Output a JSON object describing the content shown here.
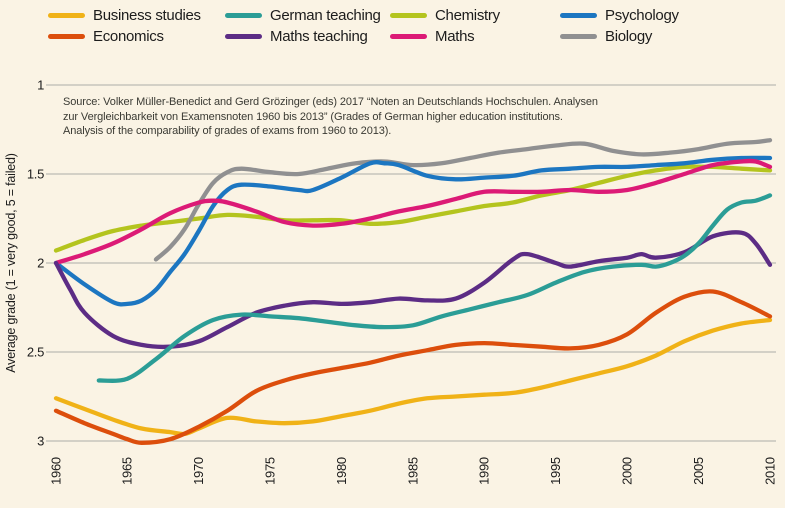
{
  "colors": {
    "background": "#faf3e4",
    "gridline": "#bcbcb3",
    "text": "#1c1c1c"
  },
  "legend": {
    "items": [
      {
        "label": "Business studies"
      },
      {
        "label": "German teaching"
      },
      {
        "label": "Chemistry"
      },
      {
        "label": "Psychology"
      },
      {
        "label": "Economics"
      },
      {
        "label": "Maths teaching"
      },
      {
        "label": "Maths"
      },
      {
        "label": "Biology"
      }
    ]
  },
  "source": {
    "lines": [
      "Source: Volker Müller-Benedict and Gerd Grözinger (eds) 2017 “Noten an Deutschlands Hochschulen. Analysen",
      "zur Vergleichbarkeit von Examensnoten 1960 bis 2013” (Grades of German higher education institutions.",
      "Analysis of the comparability of grades of exams from 1960 to 2013)."
    ]
  },
  "chart_data": {
    "type": "line",
    "title": "",
    "xlabel": "",
    "ylabel": "Average grade (1 = very good, 5 = failed)",
    "xlim": [
      1960,
      2010
    ],
    "ylim": [
      1,
      3
    ],
    "y_axis_inverted": true,
    "grid": "horizontal-only",
    "legend_position": "top",
    "x_ticks": [
      1960,
      1965,
      1970,
      1975,
      1980,
      1985,
      1990,
      1995,
      2000,
      2005,
      2010
    ],
    "y_ticks": [
      1,
      1.5,
      2,
      2.5,
      3
    ],
    "draw_order": [
      "Chemistry",
      "Business studies",
      "Economics",
      "Biology",
      "Psychology",
      "Maths",
      "Maths teaching",
      "German teaching"
    ],
    "series": [
      {
        "name": "Business studies",
        "color": "#f0b217",
        "points": [
          [
            1960,
            2.76
          ],
          [
            1962,
            2.82
          ],
          [
            1964,
            2.88
          ],
          [
            1966,
            2.93
          ],
          [
            1968,
            2.95
          ],
          [
            1969,
            2.96
          ],
          [
            1970,
            2.93
          ],
          [
            1972,
            2.87
          ],
          [
            1974,
            2.89
          ],
          [
            1976,
            2.9
          ],
          [
            1978,
            2.89
          ],
          [
            1980,
            2.86
          ],
          [
            1982,
            2.83
          ],
          [
            1984,
            2.79
          ],
          [
            1986,
            2.76
          ],
          [
            1988,
            2.75
          ],
          [
            1990,
            2.74
          ],
          [
            1992,
            2.73
          ],
          [
            1994,
            2.7
          ],
          [
            1996,
            2.66
          ],
          [
            1998,
            2.62
          ],
          [
            2000,
            2.58
          ],
          [
            2002,
            2.52
          ],
          [
            2004,
            2.44
          ],
          [
            2006,
            2.38
          ],
          [
            2008,
            2.34
          ],
          [
            2010,
            2.32
          ]
        ]
      },
      {
        "name": "Economics",
        "color": "#dc4e0c",
        "points": [
          [
            1960,
            2.83
          ],
          [
            1962,
            2.9
          ],
          [
            1964,
            2.96
          ],
          [
            1965,
            2.99
          ],
          [
            1966,
            3.01
          ],
          [
            1968,
            2.99
          ],
          [
            1970,
            2.92
          ],
          [
            1972,
            2.83
          ],
          [
            1974,
            2.72
          ],
          [
            1976,
            2.66
          ],
          [
            1978,
            2.62
          ],
          [
            1980,
            2.59
          ],
          [
            1982,
            2.56
          ],
          [
            1984,
            2.52
          ],
          [
            1986,
            2.49
          ],
          [
            1988,
            2.46
          ],
          [
            1990,
            2.45
          ],
          [
            1992,
            2.46
          ],
          [
            1994,
            2.47
          ],
          [
            1996,
            2.48
          ],
          [
            1998,
            2.46
          ],
          [
            2000,
            2.4
          ],
          [
            2002,
            2.28
          ],
          [
            2004,
            2.19
          ],
          [
            2006,
            2.16
          ],
          [
            2008,
            2.22
          ],
          [
            2010,
            2.3
          ]
        ]
      },
      {
        "name": "German teaching",
        "color": "#2b9d96",
        "points": [
          [
            1963,
            2.66
          ],
          [
            1965,
            2.65
          ],
          [
            1967,
            2.54
          ],
          [
            1969,
            2.41
          ],
          [
            1971,
            2.32
          ],
          [
            1973,
            2.29
          ],
          [
            1975,
            2.3
          ],
          [
            1977,
            2.31
          ],
          [
            1979,
            2.33
          ],
          [
            1981,
            2.35
          ],
          [
            1983,
            2.36
          ],
          [
            1985,
            2.35
          ],
          [
            1987,
            2.3
          ],
          [
            1989,
            2.26
          ],
          [
            1991,
            2.22
          ],
          [
            1993,
            2.18
          ],
          [
            1995,
            2.11
          ],
          [
            1997,
            2.05
          ],
          [
            1999,
            2.02
          ],
          [
            2001,
            2.01
          ],
          [
            2002,
            2.02
          ],
          [
            2003,
            2.0
          ],
          [
            2004,
            1.96
          ],
          [
            2005,
            1.89
          ],
          [
            2006,
            1.79
          ],
          [
            2007,
            1.7
          ],
          [
            2008,
            1.66
          ],
          [
            2009,
            1.65
          ],
          [
            2010,
            1.62
          ]
        ]
      },
      {
        "name": "Maths teaching",
        "color": "#5c2c85",
        "points": [
          [
            1960,
            2.0
          ],
          [
            1961,
            2.15
          ],
          [
            1962,
            2.28
          ],
          [
            1964,
            2.41
          ],
          [
            1966,
            2.46
          ],
          [
            1968,
            2.47
          ],
          [
            1970,
            2.44
          ],
          [
            1972,
            2.36
          ],
          [
            1974,
            2.28
          ],
          [
            1976,
            2.24
          ],
          [
            1978,
            2.22
          ],
          [
            1980,
            2.23
          ],
          [
            1982,
            2.22
          ],
          [
            1984,
            2.2
          ],
          [
            1986,
            2.21
          ],
          [
            1988,
            2.2
          ],
          [
            1990,
            2.11
          ],
          [
            1992,
            1.98
          ],
          [
            1993,
            1.95
          ],
          [
            1995,
            2.0
          ],
          [
            1996,
            2.02
          ],
          [
            1998,
            1.99
          ],
          [
            2000,
            1.97
          ],
          [
            2001,
            1.95
          ],
          [
            2002,
            1.97
          ],
          [
            2004,
            1.94
          ],
          [
            2006,
            1.85
          ],
          [
            2008,
            1.83
          ],
          [
            2009,
            1.89
          ],
          [
            2010,
            2.01
          ]
        ]
      },
      {
        "name": "Chemistry",
        "color": "#b4c41e",
        "points": [
          [
            1960,
            1.93
          ],
          [
            1962,
            1.87
          ],
          [
            1964,
            1.82
          ],
          [
            1966,
            1.79
          ],
          [
            1968,
            1.77
          ],
          [
            1970,
            1.75
          ],
          [
            1972,
            1.73
          ],
          [
            1974,
            1.74
          ],
          [
            1976,
            1.76
          ],
          [
            1978,
            1.76
          ],
          [
            1980,
            1.76
          ],
          [
            1982,
            1.78
          ],
          [
            1984,
            1.77
          ],
          [
            1986,
            1.74
          ],
          [
            1988,
            1.71
          ],
          [
            1990,
            1.68
          ],
          [
            1992,
            1.66
          ],
          [
            1994,
            1.62
          ],
          [
            1996,
            1.59
          ],
          [
            1998,
            1.55
          ],
          [
            2000,
            1.51
          ],
          [
            2002,
            1.48
          ],
          [
            2004,
            1.46
          ],
          [
            2006,
            1.46
          ],
          [
            2008,
            1.47
          ],
          [
            2010,
            1.48
          ]
        ]
      },
      {
        "name": "Maths",
        "color": "#dc1a76",
        "points": [
          [
            1960,
            2.0
          ],
          [
            1962,
            1.95
          ],
          [
            1964,
            1.89
          ],
          [
            1966,
            1.81
          ],
          [
            1968,
            1.72
          ],
          [
            1970,
            1.66
          ],
          [
            1971,
            1.65
          ],
          [
            1972,
            1.66
          ],
          [
            1974,
            1.71
          ],
          [
            1976,
            1.77
          ],
          [
            1978,
            1.79
          ],
          [
            1980,
            1.78
          ],
          [
            1982,
            1.75
          ],
          [
            1984,
            1.71
          ],
          [
            1986,
            1.68
          ],
          [
            1988,
            1.64
          ],
          [
            1990,
            1.6
          ],
          [
            1992,
            1.6
          ],
          [
            1994,
            1.6
          ],
          [
            1996,
            1.59
          ],
          [
            1998,
            1.6
          ],
          [
            2000,
            1.59
          ],
          [
            2002,
            1.55
          ],
          [
            2004,
            1.5
          ],
          [
            2006,
            1.45
          ],
          [
            2008,
            1.43
          ],
          [
            2009,
            1.43
          ],
          [
            2010,
            1.46
          ]
        ]
      },
      {
        "name": "Psychology",
        "color": "#1c76c1",
        "points": [
          [
            1960,
            2.0
          ],
          [
            1962,
            2.12
          ],
          [
            1964,
            2.22
          ],
          [
            1965,
            2.23
          ],
          [
            1966,
            2.21
          ],
          [
            1967,
            2.15
          ],
          [
            1968,
            2.05
          ],
          [
            1969,
            1.95
          ],
          [
            1970,
            1.82
          ],
          [
            1971,
            1.68
          ],
          [
            1972,
            1.59
          ],
          [
            1973,
            1.56
          ],
          [
            1975,
            1.57
          ],
          [
            1977,
            1.59
          ],
          [
            1978,
            1.59
          ],
          [
            1980,
            1.52
          ],
          [
            1982,
            1.44
          ],
          [
            1983,
            1.44
          ],
          [
            1984,
            1.45
          ],
          [
            1986,
            1.51
          ],
          [
            1988,
            1.53
          ],
          [
            1990,
            1.52
          ],
          [
            1992,
            1.51
          ],
          [
            1994,
            1.48
          ],
          [
            1996,
            1.47
          ],
          [
            1998,
            1.46
          ],
          [
            2000,
            1.46
          ],
          [
            2002,
            1.45
          ],
          [
            2004,
            1.44
          ],
          [
            2006,
            1.42
          ],
          [
            2008,
            1.41
          ],
          [
            2010,
            1.41
          ]
        ]
      },
      {
        "name": "Biology",
        "color": "#909091",
        "points": [
          [
            1967,
            1.98
          ],
          [
            1968,
            1.91
          ],
          [
            1969,
            1.81
          ],
          [
            1970,
            1.67
          ],
          [
            1971,
            1.55
          ],
          [
            1972,
            1.49
          ],
          [
            1973,
            1.47
          ],
          [
            1975,
            1.49
          ],
          [
            1977,
            1.5
          ],
          [
            1979,
            1.47
          ],
          [
            1981,
            1.44
          ],
          [
            1983,
            1.43
          ],
          [
            1985,
            1.45
          ],
          [
            1987,
            1.44
          ],
          [
            1989,
            1.41
          ],
          [
            1991,
            1.38
          ],
          [
            1993,
            1.36
          ],
          [
            1995,
            1.34
          ],
          [
            1997,
            1.33
          ],
          [
            1999,
            1.37
          ],
          [
            2001,
            1.39
          ],
          [
            2003,
            1.38
          ],
          [
            2005,
            1.36
          ],
          [
            2007,
            1.33
          ],
          [
            2009,
            1.32
          ],
          [
            2010,
            1.31
          ]
        ]
      }
    ]
  }
}
